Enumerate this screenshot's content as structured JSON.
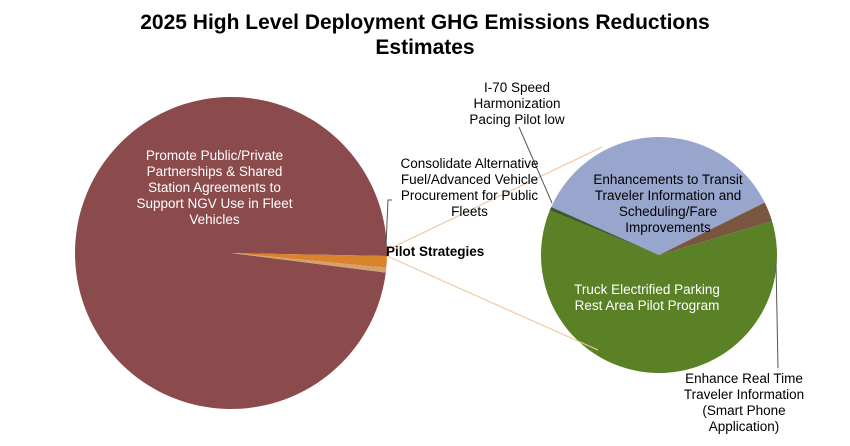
{
  "chart_data": {
    "type": "pie",
    "subtype": "pie-of-pie",
    "title_line1": "2025 High Level Deployment GHG Emissions Reductions",
    "title_line2": "Estimates",
    "main_slices": [
      {
        "name": "Promote Public/Private Partnerships & Shared Station Agreements to Support NGV Use in Fleet Vehicles",
        "value": 98.3,
        "color": "#8B4A4B"
      },
      {
        "name": "Consolidate Alternative Fuel/Advanced Vehicle Procurement for Public Fleets",
        "value": 1.2,
        "color": "#D9842C"
      },
      {
        "name": "Pilot Strategies",
        "value": 0.5,
        "color": "#D4A070"
      }
    ],
    "secondary_slices": [
      {
        "name": "Enhancements to Transit Traveler Information and Scheduling/Fare Improvements",
        "value": 36,
        "color": "#98A6CE"
      },
      {
        "name": "Enhance Real Time Traveler Information (Smart Phone Application)",
        "value": 2.7,
        "color": "#7A5540"
      },
      {
        "name": "Truck Electrified Parking Rest Area Pilot Program",
        "value": 60.8,
        "color": "#5A8125"
      },
      {
        "name": "I-70 Speed Harmonization Pacing Pilot low",
        "value": 0.5,
        "color": "#3F5A2A"
      }
    ],
    "labels": {
      "main_big": "Promote Public/Private Partnerships & Shared Station Agreements to Support NGV Use in Fleet Vehicles",
      "consolidate": "Consolidate Alternative Fuel/Advanced Vehicle Procurement for Public Fleets",
      "pilot": "Pilot Strategies",
      "i70": "I-70 Speed Harmonization Pacing Pilot low",
      "transit": "Enhancements to Transit Traveler Information and Scheduling/Fare Improvements",
      "truck": "Truck Electrified Parking Rest Area Pilot Program",
      "realtime": "Enhance Real Time Traveler Information (Smart Phone Application)"
    },
    "connector_color": "#F0C8A0",
    "leader_color": "#555555"
  }
}
